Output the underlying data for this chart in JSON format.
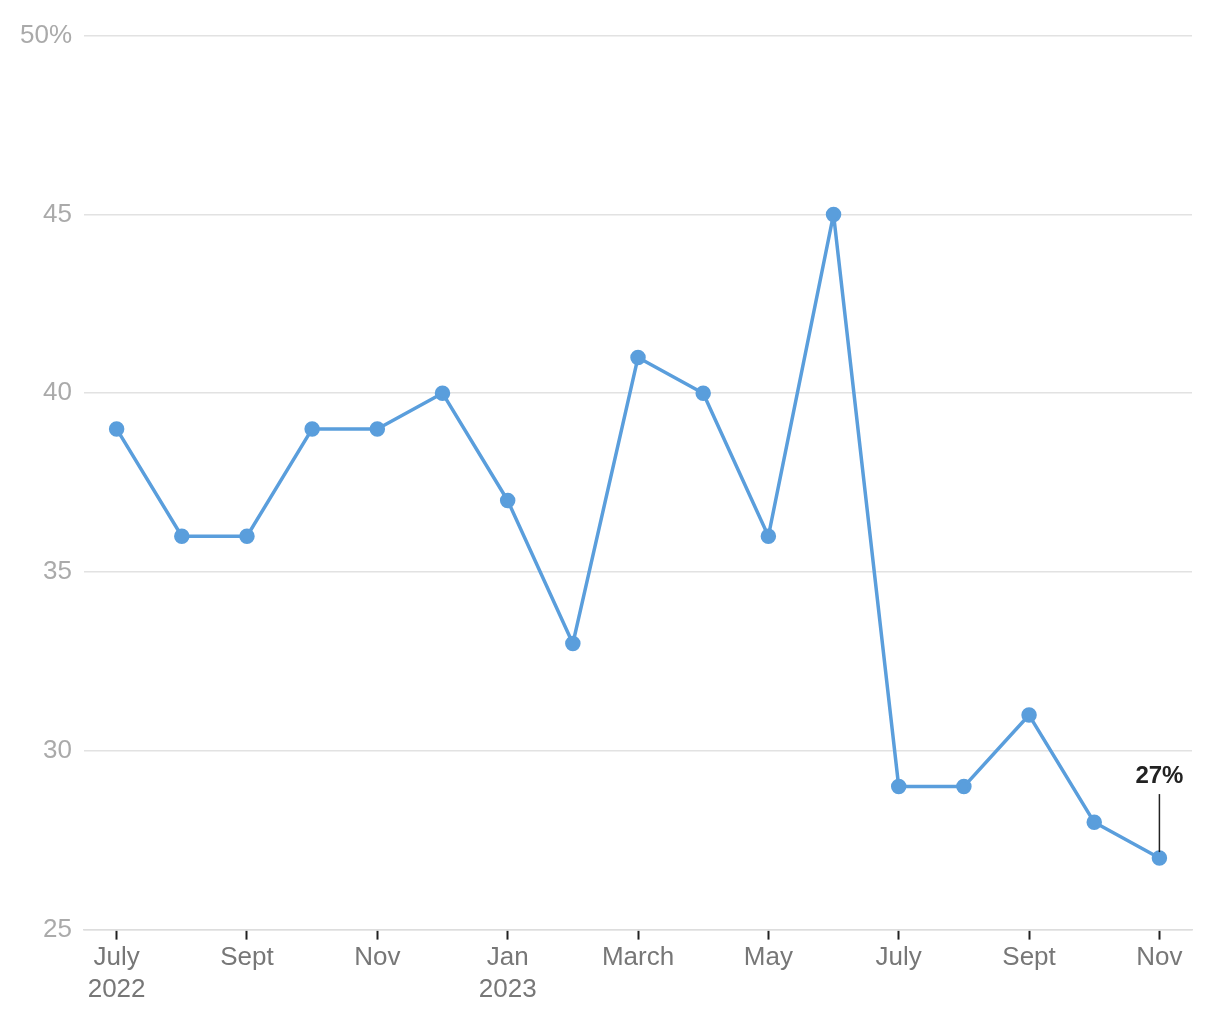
{
  "chart_data": {
    "type": "line",
    "categories": [
      "July\n2022",
      null,
      "Sept",
      null,
      "Nov",
      null,
      "Jan\n2023",
      null,
      "March",
      null,
      "May",
      null,
      "July",
      null,
      "Sept",
      null,
      "Nov"
    ],
    "series": [
      {
        "color": "#5a9edc",
        "values": [
          39,
          36,
          36,
          39,
          39,
          40,
          37,
          33,
          41,
          40,
          36,
          45,
          29,
          29,
          31,
          28,
          27
        ]
      }
    ],
    "ylim": [
      25,
      50
    ],
    "yticks": [
      25,
      30,
      35,
      40,
      45,
      {
        "value": 50,
        "label": "50%"
      }
    ],
    "grid": "y",
    "marker": "circle",
    "legend": false,
    "annotations": [
      {
        "text": "27%",
        "y": 27
      }
    ]
  }
}
